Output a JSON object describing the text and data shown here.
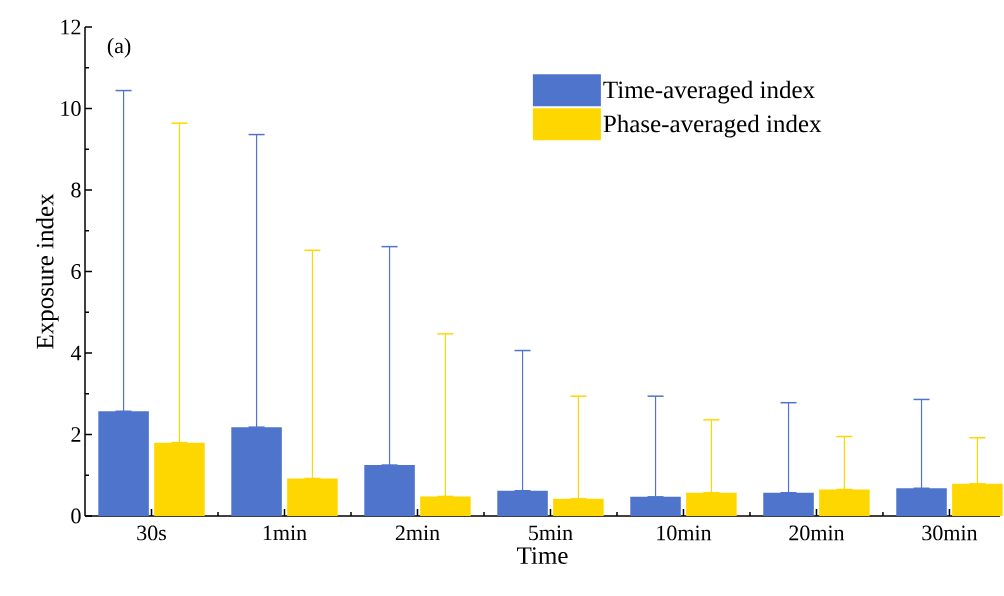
{
  "chart_data": {
    "type": "bar",
    "xlabel": "Time",
    "ylabel": "Exposure index",
    "annotations": [
      "(a)"
    ],
    "categories": [
      "30s",
      "1min",
      "2min",
      "5min",
      "10min",
      "20min",
      "30min"
    ],
    "series": [
      {
        "name": "Time-averaged index",
        "color": "#4f74cc",
        "values": [
          2.57,
          2.18,
          1.25,
          0.62,
          0.47,
          0.57,
          0.68
        ],
        "errors": [
          [
            2.57,
            10.44
          ],
          [
            2.18,
            9.36
          ],
          [
            1.25,
            6.61
          ],
          [
            0.62,
            4.06
          ],
          [
            0.47,
            2.94
          ],
          [
            0.57,
            2.78
          ],
          [
            0.68,
            2.86
          ]
        ]
      },
      {
        "name": "Phase-averaged index",
        "color": "#ffd700",
        "values": [
          1.8,
          0.92,
          0.48,
          0.42,
          0.57,
          0.65,
          0.79
        ],
        "errors": [
          [
            1.8,
            9.64
          ],
          [
            0.92,
            6.52
          ],
          [
            0.48,
            4.47
          ],
          [
            0.42,
            2.94
          ],
          [
            0.57,
            2.36
          ],
          [
            0.65,
            1.95
          ],
          [
            0.79,
            1.92
          ]
        ]
      }
    ],
    "ylim": [
      0,
      12
    ],
    "yticks": [
      0,
      2,
      4,
      6,
      8,
      10,
      12
    ],
    "legend": "top right",
    "grid": false
  }
}
